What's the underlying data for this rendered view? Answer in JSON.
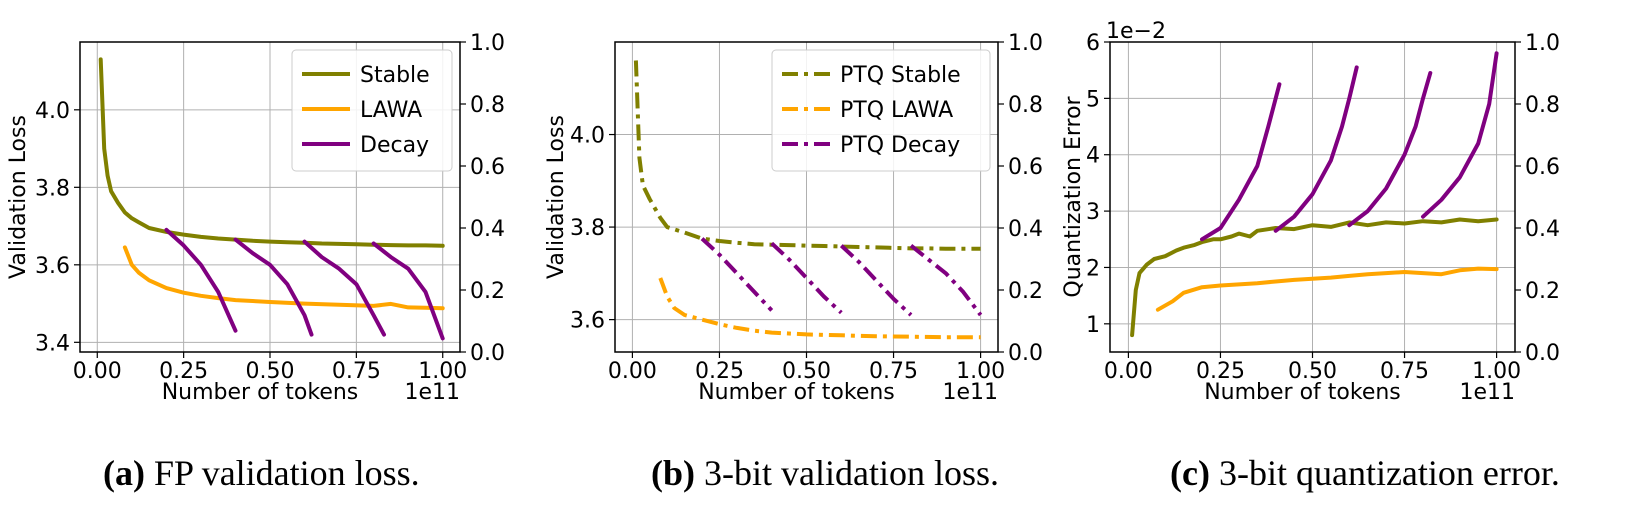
{
  "colors": {
    "stable": "#808000",
    "lawa": "#FFA500",
    "decay": "#800080",
    "grid": "#b0b0b0"
  },
  "chart_data": [
    {
      "type": "line",
      "xlabel": "Number of tokens",
      "x_offset_text": "1e11",
      "ylabel": "Validation Loss",
      "xlim": [
        -0.05,
        1.05
      ],
      "ylim": [
        3.375,
        4.175
      ],
      "y2lim": [
        0.0,
        1.0
      ],
      "xticks": [
        "0.00",
        "0.25",
        "0.50",
        "0.75",
        "1.00"
      ],
      "yticks": [
        "3.4",
        "3.6",
        "3.8",
        "4.0"
      ],
      "y2ticks": [
        "0.0",
        "0.2",
        "0.4",
        "0.6",
        "0.8",
        "1.0"
      ],
      "grid": true,
      "legend_position": "top-right",
      "caption": {
        "label": "(a)",
        "text": " FP validation loss."
      },
      "series": [
        {
          "name": "Stable",
          "color": "stable",
          "dash": "solid",
          "x": [
            0.01,
            0.02,
            0.03,
            0.04,
            0.06,
            0.08,
            0.1,
            0.12,
            0.15,
            0.2,
            0.25,
            0.3,
            0.35,
            0.4,
            0.45,
            0.5,
            0.55,
            0.6,
            0.65,
            0.7,
            0.75,
            0.8,
            0.85,
            0.9,
            0.95,
            1.0
          ],
          "y": [
            4.13,
            3.9,
            3.83,
            3.79,
            3.76,
            3.735,
            3.72,
            3.71,
            3.695,
            3.685,
            3.678,
            3.672,
            3.668,
            3.665,
            3.662,
            3.66,
            3.658,
            3.657,
            3.655,
            3.654,
            3.653,
            3.652,
            3.651,
            3.65,
            3.65,
            3.649
          ]
        },
        {
          "name": "LAWA",
          "color": "lawa",
          "dash": "solid",
          "x": [
            0.08,
            0.1,
            0.12,
            0.15,
            0.2,
            0.25,
            0.3,
            0.35,
            0.4,
            0.5,
            0.6,
            0.7,
            0.8,
            0.85,
            0.9,
            0.95,
            1.0
          ],
          "y": [
            3.645,
            3.6,
            3.58,
            3.56,
            3.54,
            3.528,
            3.52,
            3.514,
            3.509,
            3.504,
            3.5,
            3.497,
            3.494,
            3.499,
            3.49,
            3.489,
            3.488
          ]
        },
        {
          "name": "Decay",
          "color": "decay",
          "dash": "solid",
          "segments": [
            {
              "x": [
                0.2,
                0.25,
                0.3,
                0.35,
                0.4
              ],
              "y": [
                3.69,
                3.65,
                3.6,
                3.53,
                3.43
              ]
            },
            {
              "x": [
                0.4,
                0.45,
                0.5,
                0.55,
                0.6,
                0.62
              ],
              "y": [
                3.665,
                3.63,
                3.6,
                3.55,
                3.47,
                3.42
              ]
            },
            {
              "x": [
                0.6,
                0.65,
                0.7,
                0.75,
                0.8,
                0.83
              ],
              "y": [
                3.66,
                3.62,
                3.59,
                3.55,
                3.47,
                3.42
              ]
            },
            {
              "x": [
                0.8,
                0.85,
                0.9,
                0.95,
                1.0
              ],
              "y": [
                3.655,
                3.62,
                3.59,
                3.53,
                3.41
              ]
            }
          ]
        }
      ]
    },
    {
      "type": "line",
      "xlabel": "Number of tokens",
      "x_offset_text": "1e11",
      "ylabel": "Validation Loss",
      "xlim": [
        -0.05,
        1.05
      ],
      "ylim": [
        3.53,
        4.2
      ],
      "y2lim": [
        0.0,
        1.0
      ],
      "xticks": [
        "0.00",
        "0.25",
        "0.50",
        "0.75",
        "1.00"
      ],
      "yticks": [
        "3.6",
        "3.8",
        "4.0"
      ],
      "y2ticks": [
        "0.0",
        "0.2",
        "0.4",
        "0.6",
        "0.8",
        "1.0"
      ],
      "grid": true,
      "legend_position": "top-right",
      "caption": {
        "label": "(b)",
        "text": " 3-bit validation loss."
      },
      "series": [
        {
          "name": "PTQ Stable",
          "color": "stable",
          "dash": "dashdot",
          "x": [
            0.01,
            0.02,
            0.03,
            0.05,
            0.08,
            0.1,
            0.15,
            0.2,
            0.25,
            0.3,
            0.35,
            0.4,
            0.45,
            0.5,
            0.55,
            0.6,
            0.65,
            0.7,
            0.75,
            0.8,
            0.85,
            0.9,
            0.95,
            1.0
          ],
          "y": [
            4.16,
            3.95,
            3.89,
            3.86,
            3.82,
            3.8,
            3.788,
            3.775,
            3.77,
            3.766,
            3.763,
            3.762,
            3.761,
            3.76,
            3.759,
            3.758,
            3.757,
            3.756,
            3.755,
            3.754,
            3.754,
            3.753,
            3.753,
            3.753
          ]
        },
        {
          "name": "PTQ LAWA",
          "color": "lawa",
          "dash": "dashdot",
          "x": [
            0.08,
            0.1,
            0.12,
            0.15,
            0.2,
            0.25,
            0.3,
            0.35,
            0.4,
            0.5,
            0.6,
            0.7,
            0.8,
            0.9,
            1.0
          ],
          "y": [
            3.69,
            3.65,
            3.625,
            3.61,
            3.6,
            3.59,
            3.582,
            3.576,
            3.572,
            3.568,
            3.566,
            3.564,
            3.563,
            3.562,
            3.562
          ]
        },
        {
          "name": "PTQ Decay",
          "color": "decay",
          "dash": "dashdot",
          "segments": [
            {
              "x": [
                0.2,
                0.25,
                0.3,
                0.35,
                0.4
              ],
              "y": [
                3.775,
                3.74,
                3.7,
                3.66,
                3.62
              ]
            },
            {
              "x": [
                0.4,
                0.45,
                0.5,
                0.55,
                0.6
              ],
              "y": [
                3.765,
                3.73,
                3.69,
                3.65,
                3.615
              ]
            },
            {
              "x": [
                0.6,
                0.65,
                0.7,
                0.75,
                0.8
              ],
              "y": [
                3.76,
                3.725,
                3.685,
                3.645,
                3.61
              ]
            },
            {
              "x": [
                0.8,
                0.85,
                0.9,
                0.95,
                1.0
              ],
              "y": [
                3.76,
                3.73,
                3.7,
                3.66,
                3.61
              ]
            }
          ]
        }
      ]
    },
    {
      "type": "line",
      "xlabel": "Number of tokens",
      "x_offset_text": "1e11",
      "ylabel": "Quantization Error",
      "y_offset_text": "1e−2",
      "xlim": [
        -0.05,
        1.05
      ],
      "ylim": [
        0.5,
        6.0
      ],
      "y2lim": [
        0.0,
        1.0
      ],
      "xticks": [
        "0.00",
        "0.25",
        "0.50",
        "0.75",
        "1.00"
      ],
      "yticks": [
        "1",
        "2",
        "3",
        "4",
        "5",
        "6"
      ],
      "y2ticks": [
        "0.0",
        "0.2",
        "0.4",
        "0.6",
        "0.8",
        "1.0"
      ],
      "grid": true,
      "caption": {
        "label": "(c)",
        "text": " 3-bit quantization error."
      },
      "series": [
        {
          "color": "stable",
          "dash": "solid",
          "x": [
            0.01,
            0.02,
            0.03,
            0.05,
            0.07,
            0.1,
            0.13,
            0.15,
            0.18,
            0.2,
            0.23,
            0.25,
            0.28,
            0.3,
            0.33,
            0.35,
            0.4,
            0.45,
            0.5,
            0.55,
            0.6,
            0.65,
            0.7,
            0.75,
            0.8,
            0.85,
            0.9,
            0.95,
            1.0
          ],
          "y": [
            0.8,
            1.6,
            1.9,
            2.05,
            2.15,
            2.2,
            2.3,
            2.35,
            2.4,
            2.45,
            2.5,
            2.5,
            2.55,
            2.6,
            2.55,
            2.65,
            2.7,
            2.68,
            2.75,
            2.72,
            2.8,
            2.75,
            2.8,
            2.78,
            2.82,
            2.8,
            2.85,
            2.82,
            2.85
          ]
        },
        {
          "color": "lawa",
          "dash": "solid",
          "x": [
            0.08,
            0.12,
            0.15,
            0.2,
            0.25,
            0.3,
            0.35,
            0.4,
            0.45,
            0.5,
            0.55,
            0.6,
            0.65,
            0.7,
            0.75,
            0.8,
            0.85,
            0.9,
            0.95,
            1.0
          ],
          "y": [
            1.25,
            1.4,
            1.55,
            1.65,
            1.68,
            1.7,
            1.72,
            1.75,
            1.78,
            1.8,
            1.82,
            1.85,
            1.88,
            1.9,
            1.92,
            1.9,
            1.88,
            1.95,
            1.98,
            1.97
          ]
        },
        {
          "color": "decay",
          "dash": "solid",
          "segments": [
            {
              "x": [
                0.2,
                0.25,
                0.3,
                0.35,
                0.38,
                0.4,
                0.41
              ],
              "y": [
                2.5,
                2.7,
                3.2,
                3.8,
                4.5,
                5.0,
                5.25
              ]
            },
            {
              "x": [
                0.4,
                0.45,
                0.5,
                0.55,
                0.58,
                0.6,
                0.62
              ],
              "y": [
                2.65,
                2.9,
                3.3,
                3.9,
                4.5,
                5.0,
                5.55
              ]
            },
            {
              "x": [
                0.6,
                0.65,
                0.7,
                0.75,
                0.78,
                0.8,
                0.82
              ],
              "y": [
                2.75,
                3.0,
                3.4,
                4.0,
                4.5,
                5.0,
                5.45
              ]
            },
            {
              "x": [
                0.8,
                0.85,
                0.9,
                0.95,
                0.98,
                1.0
              ],
              "y": [
                2.9,
                3.2,
                3.6,
                4.2,
                4.9,
                5.8
              ]
            }
          ]
        }
      ]
    }
  ]
}
